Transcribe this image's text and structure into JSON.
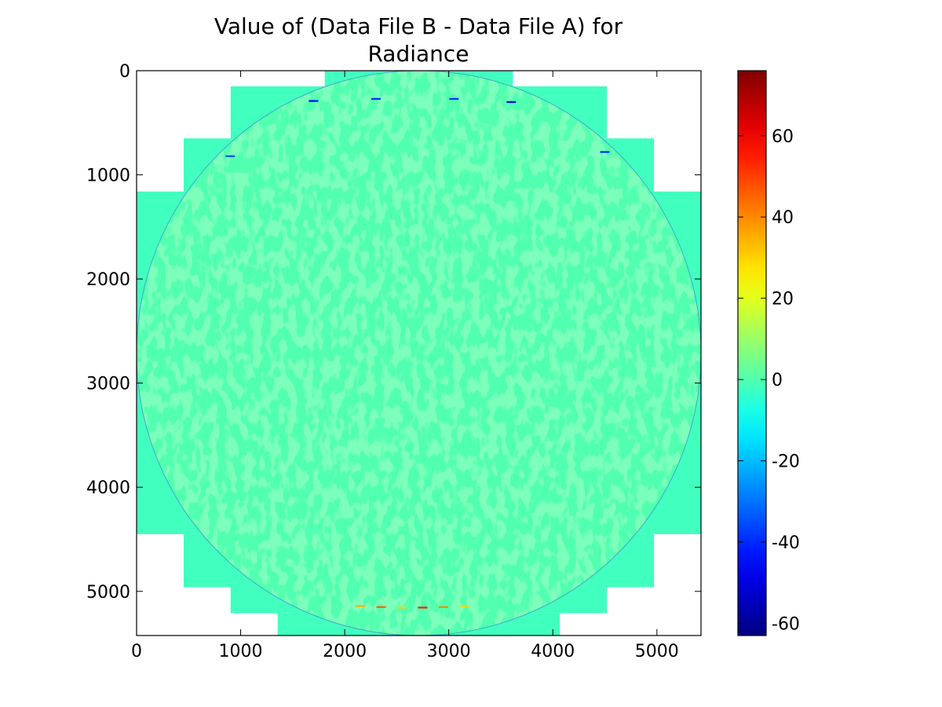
{
  "chart_data": {
    "type": "heatmap",
    "title": "Value of (Data File B - Data File A) for Radiance",
    "title_lines": [
      "Value of (Data File B - Data File A) for",
      "Radiance"
    ],
    "xlabel": "",
    "ylabel": "",
    "x_ticks": [
      0,
      1000,
      2000,
      3000,
      4000,
      5000
    ],
    "y_ticks": [
      0,
      1000,
      2000,
      3000,
      4000,
      5000
    ],
    "xlim": [
      0,
      5424
    ],
    "ylim": [
      5424,
      0
    ],
    "y_inverted": true,
    "grid": false,
    "colormap": "jet",
    "colorbar": {
      "vmin": -63,
      "vmax": 76,
      "ticks": [
        -60,
        -40,
        -20,
        0,
        20,
        40,
        60
      ],
      "tick_labels": [
        "-60",
        "-40",
        "-20",
        "0",
        "20",
        "40",
        "60"
      ]
    },
    "disk_center": [
      2712,
      2712
    ],
    "disk_radius": 2712,
    "field_value": 0,
    "background_block_value": -2,
    "nodata_color": "#ffffff",
    "valid_region_row_spans": [
      {
        "y_from": 0,
        "y_to": 150,
        "x_from": 1808,
        "x_to": 3616
      },
      {
        "y_from": 150,
        "y_to": 650,
        "x_from": 904,
        "x_to": 4520
      },
      {
        "y_from": 650,
        "y_to": 1160,
        "x_from": 452,
        "x_to": 4972
      },
      {
        "y_from": 1160,
        "y_to": 4450,
        "x_from": 0,
        "x_to": 5424
      },
      {
        "y_from": 4450,
        "y_to": 4960,
        "x_from": 452,
        "x_to": 4972
      },
      {
        "y_from": 4960,
        "y_to": 5210,
        "x_from": 904,
        "x_to": 4520
      },
      {
        "y_from": 5210,
        "y_to": 5424,
        "x_from": 1356,
        "x_to": 4068
      }
    ],
    "limb_anomalies": [
      {
        "x": 2150,
        "y": 5140,
        "value": 35
      },
      {
        "x": 2350,
        "y": 5150,
        "value": 45
      },
      {
        "x": 2550,
        "y": 5155,
        "value": 30
      },
      {
        "x": 2750,
        "y": 5155,
        "value": 55
      },
      {
        "x": 2950,
        "y": 5150,
        "value": 40
      },
      {
        "x": 3150,
        "y": 5140,
        "value": 30
      },
      {
        "x": 1700,
        "y": 290,
        "value": -45
      },
      {
        "x": 2300,
        "y": 270,
        "value": -40
      },
      {
        "x": 3050,
        "y": 270,
        "value": -40
      },
      {
        "x": 3600,
        "y": 300,
        "value": -45
      },
      {
        "x": 4500,
        "y": 780,
        "value": -40
      },
      {
        "x": 900,
        "y": 820,
        "value": -35
      }
    ]
  }
}
